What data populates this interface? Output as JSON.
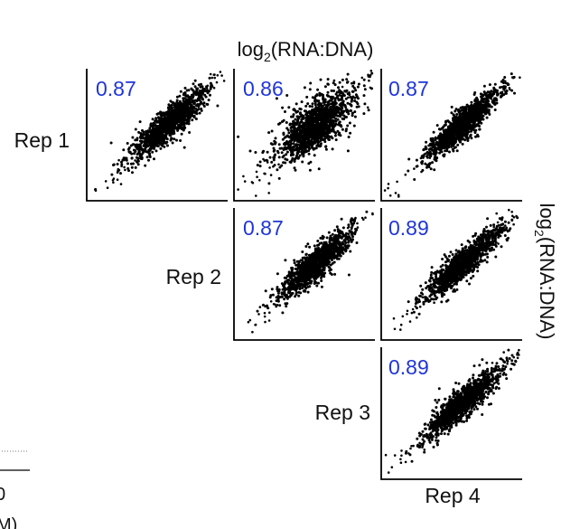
{
  "figure": {
    "top_label": {
      "main": "log",
      "sub": "2",
      "rest": "(RNA:DNA)"
    },
    "right_label": {
      "main": "log",
      "sub": "2",
      "rest": "(RNA:DNA)"
    },
    "partial_text_bottom_left": [
      "0",
      "M)"
    ]
  },
  "chart_data": {
    "type": "scatter",
    "layout": "upper-triangular pairwise replicate correlation matrix",
    "row_labels": [
      "Rep 1",
      "Rep 2",
      "Rep 3"
    ],
    "column_labels": [
      "",
      "",
      "Rep 4"
    ],
    "x_axis_label": {
      "main": "log",
      "sub": "2",
      "rest": "(RNA:DNA)",
      "position": "top"
    },
    "y_axis_label": {
      "main": "log",
      "sub": "2",
      "rest": "(RNA:DNA)",
      "position": "right"
    },
    "grid": false,
    "point_color": "#000000",
    "correlation_color": "#1f35d8",
    "panels": [
      {
        "row": "Rep 1",
        "column": "Rep 2",
        "correlation": "0.87",
        "spread": 0.55,
        "outliers": "few"
      },
      {
        "row": "Rep 1",
        "column": "Rep 3",
        "correlation": "0.86",
        "spread": 0.9,
        "outliers": "many"
      },
      {
        "row": "Rep 1",
        "column": "Rep 4",
        "correlation": "0.87",
        "spread": 0.5,
        "outliers": "few"
      },
      {
        "row": "Rep 2",
        "column": "Rep 3",
        "correlation": "0.87",
        "spread": 0.55,
        "outliers": "few"
      },
      {
        "row": "Rep 2",
        "column": "Rep 4",
        "correlation": "0.89",
        "spread": 0.5,
        "outliers": "few"
      },
      {
        "row": "Rep 3",
        "column": "Rep 4",
        "correlation": "0.89",
        "spread": 0.5,
        "outliers": "few"
      }
    ]
  }
}
